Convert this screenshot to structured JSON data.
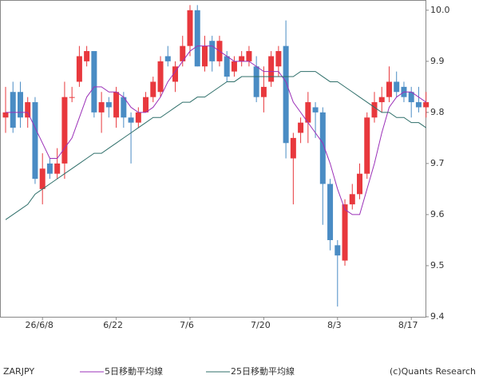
{
  "chart_data": {
    "type": "candlestick",
    "title": "ZARJPY",
    "credit": "(c)Quants Research",
    "up_color": "#e8383d",
    "down_color": "#4a8cc4",
    "categories": [
      null,
      null,
      null,
      null,
      null,
      "26/6/8",
      null,
      null,
      null,
      null,
      null,
      null,
      null,
      null,
      null,
      "6/22",
      null,
      null,
      null,
      null,
      null,
      null,
      null,
      null,
      null,
      "7/6",
      null,
      null,
      null,
      null,
      null,
      null,
      null,
      null,
      null,
      "7/20",
      null,
      null,
      null,
      null,
      null,
      null,
      null,
      null,
      null,
      "8/3",
      null,
      null,
      null,
      null,
      null,
      null,
      null,
      null,
      null,
      "8/17",
      null,
      null
    ],
    "open": [
      9.79,
      9.84,
      9.84,
      9.79,
      9.82,
      9.65,
      9.7,
      9.68,
      9.7,
      9.83,
      9.86,
      9.9,
      9.92,
      9.8,
      9.82,
      9.79,
      9.83,
      9.79,
      9.78,
      9.8,
      9.83,
      9.84,
      9.91,
      9.86,
      9.9,
      9.93,
      10.0,
      9.89,
      9.94,
      9.9,
      9.91,
      9.88,
      9.9,
      9.9,
      9.89,
      9.83,
      9.86,
      9.89,
      9.93,
      9.71,
      9.76,
      9.78,
      9.81,
      9.8,
      9.66,
      9.54,
      9.51,
      9.62,
      9.64,
      9.68,
      9.79,
      9.82,
      9.83,
      9.86,
      9.85,
      9.84,
      9.82,
      9.81
    ],
    "high": [
      9.85,
      9.86,
      9.86,
      9.83,
      9.83,
      9.72,
      9.71,
      9.73,
      9.86,
      9.85,
      9.93,
      9.93,
      9.92,
      9.84,
      9.83,
      9.85,
      9.84,
      9.8,
      9.81,
      9.84,
      9.87,
      9.91,
      9.93,
      9.9,
      9.95,
      10.01,
      10.01,
      9.95,
      9.95,
      9.95,
      9.92,
      9.91,
      9.92,
      9.93,
      9.91,
      9.89,
      9.92,
      9.93,
      9.98,
      9.76,
      9.79,
      9.84,
      9.82,
      9.81,
      9.67,
      9.55,
      9.63,
      9.66,
      9.7,
      9.8,
      9.84,
      9.85,
      9.89,
      9.88,
      9.86,
      9.85,
      9.85,
      9.84
    ],
    "low": [
      9.76,
      9.76,
      9.77,
      9.77,
      9.66,
      9.62,
      9.67,
      9.67,
      9.67,
      9.82,
      9.85,
      9.89,
      9.79,
      9.76,
      9.79,
      9.77,
      9.77,
      9.7,
      9.77,
      9.8,
      9.82,
      9.83,
      9.89,
      9.84,
      9.89,
      9.91,
      9.89,
      9.88,
      9.88,
      9.89,
      9.86,
      9.87,
      9.89,
      9.89,
      9.82,
      9.8,
      9.85,
      9.87,
      9.71,
      9.62,
      9.74,
      9.74,
      9.75,
      9.58,
      9.53,
      9.42,
      9.5,
      9.61,
      9.63,
      9.67,
      9.78,
      9.8,
      9.82,
      9.83,
      9.82,
      9.79,
      9.8,
      9.79
    ],
    "close": [
      9.8,
      9.77,
      9.79,
      9.82,
      9.67,
      9.69,
      9.68,
      9.7,
      9.83,
      9.83,
      9.91,
      9.92,
      9.8,
      9.82,
      9.81,
      9.84,
      9.79,
      9.78,
      9.8,
      9.83,
      9.86,
      9.9,
      9.9,
      9.89,
      9.93,
      10.0,
      9.89,
      9.93,
      9.9,
      9.94,
      9.87,
      9.9,
      9.91,
      9.92,
      9.83,
      9.85,
      9.91,
      9.92,
      9.74,
      9.75,
      9.78,
      9.82,
      9.8,
      9.66,
      9.55,
      9.52,
      9.62,
      9.64,
      9.68,
      9.79,
      9.82,
      9.83,
      9.86,
      9.84,
      9.83,
      9.82,
      9.81,
      9.82
    ],
    "series": [
      {
        "name": "5日移動平均線",
        "color": "#9b30b8",
        "values": [
          9.8,
          9.8,
          9.8,
          9.8,
          9.77,
          9.74,
          9.71,
          9.71,
          9.73,
          9.75,
          9.79,
          9.83,
          9.85,
          9.85,
          9.84,
          9.84,
          9.83,
          9.81,
          9.8,
          9.8,
          9.81,
          9.83,
          9.86,
          9.88,
          9.9,
          9.92,
          9.93,
          9.93,
          9.93,
          9.92,
          9.91,
          9.9,
          9.9,
          9.9,
          9.89,
          9.88,
          9.88,
          9.88,
          9.86,
          9.82,
          9.8,
          9.78,
          9.76,
          9.74,
          9.7,
          9.65,
          9.61,
          9.6,
          9.6,
          9.65,
          9.7,
          9.76,
          9.81,
          9.83,
          9.84,
          9.84,
          9.83,
          9.82
        ]
      },
      {
        "name": "25日移動平均線",
        "color": "#2f6f6a",
        "values": [
          9.59,
          9.6,
          9.61,
          9.62,
          9.64,
          9.65,
          9.66,
          9.67,
          9.68,
          9.69,
          9.7,
          9.71,
          9.72,
          9.72,
          9.73,
          9.74,
          9.75,
          9.76,
          9.77,
          9.78,
          9.79,
          9.79,
          9.8,
          9.81,
          9.82,
          9.82,
          9.83,
          9.83,
          9.84,
          9.85,
          9.86,
          9.86,
          9.87,
          9.87,
          9.87,
          9.87,
          9.87,
          9.87,
          9.87,
          9.87,
          9.88,
          9.88,
          9.88,
          9.87,
          9.86,
          9.86,
          9.85,
          9.84,
          9.83,
          9.82,
          9.81,
          9.8,
          9.8,
          9.79,
          9.79,
          9.78,
          9.78,
          9.77
        ]
      }
    ],
    "ylim": [
      9.4,
      10.02
    ],
    "yticks": [
      9.4,
      9.5,
      9.6,
      9.7,
      9.8,
      9.9,
      {
        "value": 10,
        "label": "10.0"
      }
    ]
  }
}
